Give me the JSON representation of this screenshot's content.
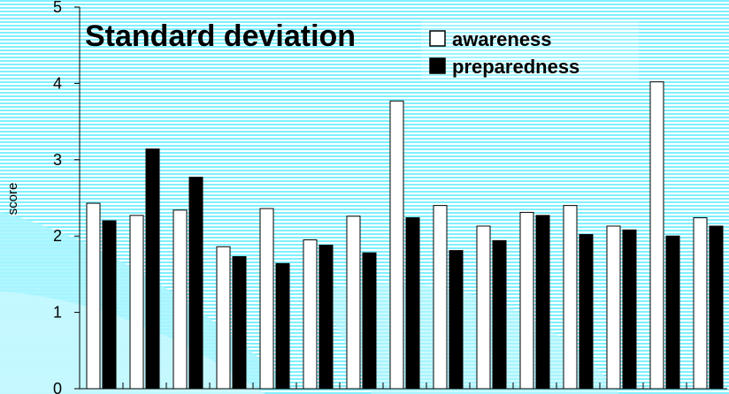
{
  "chart_data": {
    "type": "bar",
    "title": "Standard deviation",
    "ylabel": "score",
    "xlabel": "",
    "ylim": [
      0,
      5
    ],
    "yticks": [
      0,
      1,
      2,
      3,
      4,
      5
    ],
    "legend_position": "top-center",
    "grid": false,
    "categories": [
      "",
      "",
      "",
      "",
      "",
      "",
      "",
      "",
      "",
      "",
      "",
      "",
      "",
      "",
      ""
    ],
    "series": [
      {
        "name": "awareness",
        "color": "#ffffff",
        "values": [
          2.43,
          2.27,
          2.34,
          1.86,
          2.36,
          1.95,
          2.26,
          3.77,
          2.4,
          2.13,
          2.31,
          2.4,
          2.13,
          4.02,
          2.24
        ]
      },
      {
        "name": "preparedness",
        "color": "#000000",
        "values": [
          2.2,
          3.14,
          2.77,
          1.73,
          1.64,
          1.88,
          1.78,
          2.24,
          1.81,
          1.94,
          2.27,
          2.02,
          2.08,
          2.0,
          2.13
        ]
      }
    ]
  },
  "background": {
    "stripe_color": "#7ff0ff",
    "base_color": "#ffffff",
    "swoosh_color": "#9ff4ff"
  }
}
